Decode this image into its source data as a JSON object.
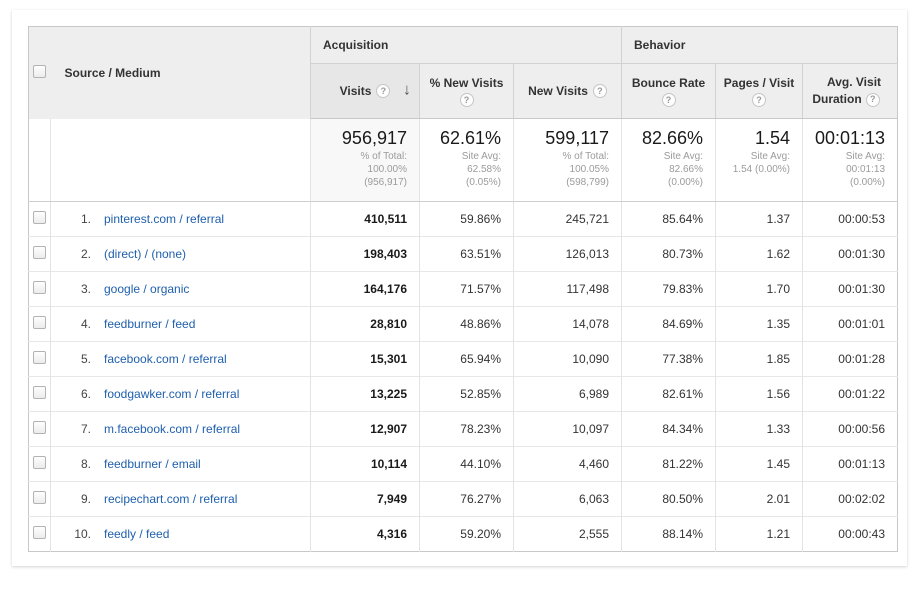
{
  "icons": {
    "help": "?",
    "sort_desc": "↓"
  },
  "colors": {
    "link_blue": "#1f5fad",
    "header_bg": "#eeeeee",
    "sorted_col_bg": "#f8f8f8"
  },
  "table": {
    "row_dimension": "Source / Medium",
    "groups": [
      {
        "label": "Acquisition"
      },
      {
        "label": "Behavior"
      }
    ],
    "columns": [
      {
        "label": "Visits"
      },
      {
        "label": "% New Visits"
      },
      {
        "label": "New Visits"
      },
      {
        "label": "Bounce Rate"
      },
      {
        "label": "Pages / Visit"
      },
      {
        "label": "Avg. Visit Duration"
      }
    ],
    "summary": {
      "visits": {
        "value": "956,917",
        "lines": [
          "% of Total:",
          "100.00%",
          "(956,917)"
        ]
      },
      "pct_new_visits": {
        "value": "62.61%",
        "lines": [
          "Site Avg:",
          "62.58%",
          "(0.05%)"
        ]
      },
      "new_visits": {
        "value": "599,117",
        "lines": [
          "% of Total:",
          "100.05%",
          "(598,799)"
        ]
      },
      "bounce_rate": {
        "value": "82.66%",
        "lines": [
          "Site Avg:",
          "82.66%",
          "(0.00%)"
        ]
      },
      "pages_visit": {
        "value": "1.54",
        "lines": [
          "Site Avg:",
          "1.54 (0.00%)"
        ]
      },
      "avg_duration": {
        "value": "00:01:13",
        "lines": [
          "Site Avg:",
          "00:01:13",
          "(0.00%)"
        ]
      }
    },
    "rows": [
      {
        "rank": "1.",
        "source": "pinterest.com / referral",
        "visits": "410,511",
        "pct_new_visits": "59.86%",
        "new_visits": "245,721",
        "bounce_rate": "85.64%",
        "pages_visit": "1.37",
        "avg_duration": "00:00:53"
      },
      {
        "rank": "2.",
        "source": "(direct) / (none)",
        "visits": "198,403",
        "pct_new_visits": "63.51%",
        "new_visits": "126,013",
        "bounce_rate": "80.73%",
        "pages_visit": "1.62",
        "avg_duration": "00:01:30"
      },
      {
        "rank": "3.",
        "source": "google / organic",
        "visits": "164,176",
        "pct_new_visits": "71.57%",
        "new_visits": "117,498",
        "bounce_rate": "79.83%",
        "pages_visit": "1.70",
        "avg_duration": "00:01:30"
      },
      {
        "rank": "4.",
        "source": "feedburner / feed",
        "visits": "28,810",
        "pct_new_visits": "48.86%",
        "new_visits": "14,078",
        "bounce_rate": "84.69%",
        "pages_visit": "1.35",
        "avg_duration": "00:01:01"
      },
      {
        "rank": "5.",
        "source": "facebook.com / referral",
        "visits": "15,301",
        "pct_new_visits": "65.94%",
        "new_visits": "10,090",
        "bounce_rate": "77.38%",
        "pages_visit": "1.85",
        "avg_duration": "00:01:28"
      },
      {
        "rank": "6.",
        "source": "foodgawker.com / referral",
        "visits": "13,225",
        "pct_new_visits": "52.85%",
        "new_visits": "6,989",
        "bounce_rate": "82.61%",
        "pages_visit": "1.56",
        "avg_duration": "00:01:22"
      },
      {
        "rank": "7.",
        "source": "m.facebook.com / referral",
        "visits": "12,907",
        "pct_new_visits": "78.23%",
        "new_visits": "10,097",
        "bounce_rate": "84.34%",
        "pages_visit": "1.33",
        "avg_duration": "00:00:56"
      },
      {
        "rank": "8.",
        "source": "feedburner / email",
        "visits": "10,114",
        "pct_new_visits": "44.10%",
        "new_visits": "4,460",
        "bounce_rate": "81.22%",
        "pages_visit": "1.45",
        "avg_duration": "00:01:13"
      },
      {
        "rank": "9.",
        "source": "recipechart.com / referral",
        "visits": "7,949",
        "pct_new_visits": "76.27%",
        "new_visits": "6,063",
        "bounce_rate": "80.50%",
        "pages_visit": "2.01",
        "avg_duration": "00:02:02"
      },
      {
        "rank": "10.",
        "source": "feedly / feed",
        "visits": "4,316",
        "pct_new_visits": "59.20%",
        "new_visits": "2,555",
        "bounce_rate": "88.14%",
        "pages_visit": "1.21",
        "avg_duration": "00:00:43"
      }
    ]
  }
}
